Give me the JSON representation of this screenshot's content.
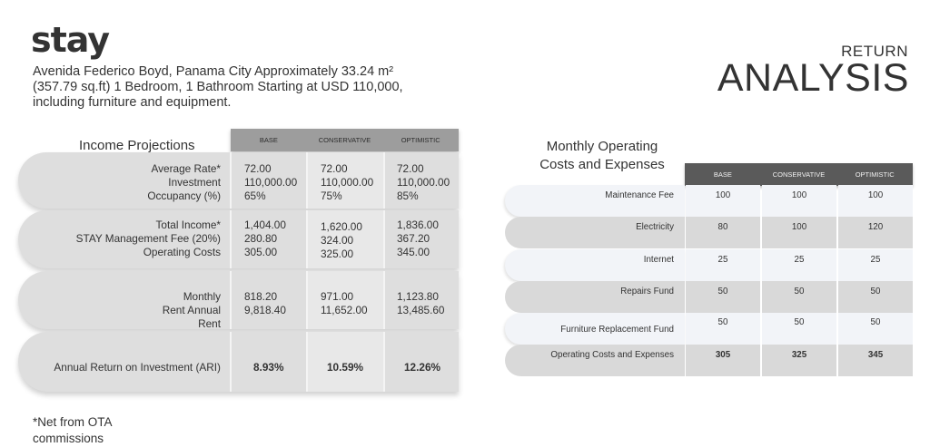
{
  "brand": {
    "logo": "stay"
  },
  "address": "Avenida Federico Boyd, Panama City Approximately 33.24 m² (357.79 sq.ft) 1 Bedroom, 1 Bathroom Starting at USD 110,000, including furniture and equipment.",
  "heading": {
    "small": "RETURN",
    "big": "ANALYSIS"
  },
  "income": {
    "title": "Income Projections",
    "columns": [
      "BASE",
      "CONSERVATIVE",
      "OPTIMISTIC"
    ],
    "block1": {
      "labels": [
        "Average Rate*",
        "Investment",
        "Occupancy (%)"
      ],
      "base": [
        "72.00",
        "110,000.00",
        "65%"
      ],
      "conservative": [
        "72.00",
        "110,000.00",
        "75%"
      ],
      "optimistic": [
        "72.00",
        "110,000.00",
        "85%"
      ]
    },
    "block2": {
      "labels": [
        "Total Income*",
        "STAY Management Fee (20%)",
        "Operating Costs"
      ],
      "base": [
        "1,404.00",
        "280.80",
        "305.00"
      ],
      "conservative": [
        "1,620.00",
        "324.00",
        "325.00"
      ],
      "optimistic": [
        "1,836.00",
        "367.20",
        "345.00"
      ]
    },
    "block3": {
      "labels": [
        "Monthly",
        "Rent Annual",
        "Rent"
      ],
      "base": [
        "818.20",
        "9,818.40"
      ],
      "conservative": [
        "971.00",
        "11,652.00"
      ],
      "optimistic": [
        "1,123.80",
        "13,485.60"
      ]
    },
    "block4": {
      "label": "Annual Return on Investment (ARI)",
      "base": "8.93%",
      "conservative": "10.59%",
      "optimistic": "12.26%"
    },
    "footnote": [
      "*Net from OTA",
      "commissions"
    ]
  },
  "costs": {
    "title": [
      "Monthly Operating",
      "Costs and Expenses"
    ],
    "columns": [
      "BASE",
      "CONSERVATIVE",
      "OPTIMISTIC"
    ],
    "rows": [
      {
        "label": "Maintenance Fee",
        "values": [
          "100",
          "100",
          "100"
        ]
      },
      {
        "label": "Electricity",
        "values": [
          "80",
          "100",
          "120"
        ]
      },
      {
        "label": "Internet",
        "values": [
          "25",
          "25",
          "25"
        ]
      },
      {
        "label": "Repairs Fund",
        "values": [
          "50",
          "50",
          "50"
        ]
      },
      {
        "label": "Furniture Replacement Fund",
        "values": [
          "50",
          "50",
          "50"
        ]
      },
      {
        "label": "Operating Costs and Expenses",
        "values": [
          "305",
          "325",
          "345"
        ]
      }
    ]
  }
}
